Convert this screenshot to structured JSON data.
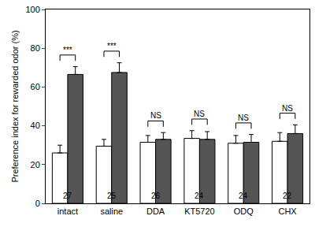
{
  "chart_data": {
    "type": "bar",
    "y_label": "Preference index for rewarded odor (%)",
    "categories": [
      "intact",
      "saline",
      "DDA",
      "KT5720",
      "ODQ",
      "CHX"
    ],
    "series": [
      {
        "color": "#ffffff",
        "values": [
          26,
          29.5,
          31.5,
          33.5,
          31,
          32
        ],
        "errors": [
          4,
          3.5,
          3.5,
          4,
          4,
          4.5
        ]
      },
      {
        "color": "#555555",
        "values": [
          66.5,
          67.5,
          33,
          33,
          31.5,
          36
        ],
        "errors": [
          4,
          5,
          3.5,
          4,
          4,
          4.5
        ]
      }
    ],
    "significance": [
      "***",
      "***",
      "NS",
      "NS",
      "NS",
      "NS"
    ],
    "n": [
      27,
      25,
      26,
      24,
      24,
      22
    ],
    "ylim": [
      0,
      100
    ],
    "yticks": [
      0,
      20,
      40,
      60,
      80,
      100
    ],
    "grid": false,
    "data_labels": false
  }
}
